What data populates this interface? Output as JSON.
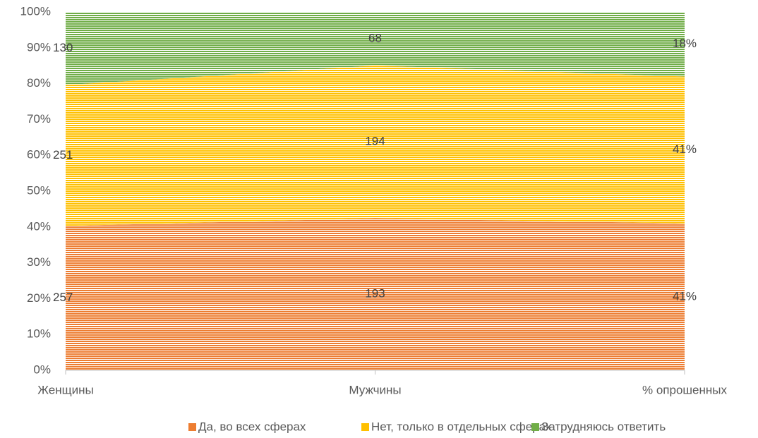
{
  "chart_data": {
    "type": "area",
    "stack": "percent",
    "categories": [
      "Женщины",
      "Мужчины",
      "% опрошенных"
    ],
    "series": [
      {
        "name": "Да, во всех сферах",
        "color": "#ed7d31",
        "values": [
          257,
          193,
          41
        ],
        "value_labels": [
          "257",
          "193",
          "41%"
        ]
      },
      {
        "name": "Нет, только в отдельных сферах",
        "color": "#ffc000",
        "values": [
          251,
          194,
          41
        ],
        "value_labels": [
          "251",
          "194",
          "41%"
        ]
      },
      {
        "name": "Затрудняюсь ответить",
        "color": "#70ad47",
        "values": [
          130,
          68,
          18
        ],
        "value_labels": [
          "130",
          "68",
          "18%"
        ]
      }
    ],
    "ylim": [
      0,
      100
    ],
    "yticks": [
      {
        "value": 0,
        "label": "0%"
      },
      {
        "value": 10,
        "label": "10%"
      },
      {
        "value": 20,
        "label": "20%"
      },
      {
        "value": 30,
        "label": "30%"
      },
      {
        "value": 40,
        "label": "40%"
      },
      {
        "value": 50,
        "label": "50%"
      },
      {
        "value": 60,
        "label": "60%"
      },
      {
        "value": 70,
        "label": "70%"
      },
      {
        "value": 80,
        "label": "80%"
      },
      {
        "value": 90,
        "label": "90%"
      },
      {
        "value": 100,
        "label": "100%"
      }
    ],
    "legend": "bottom"
  }
}
